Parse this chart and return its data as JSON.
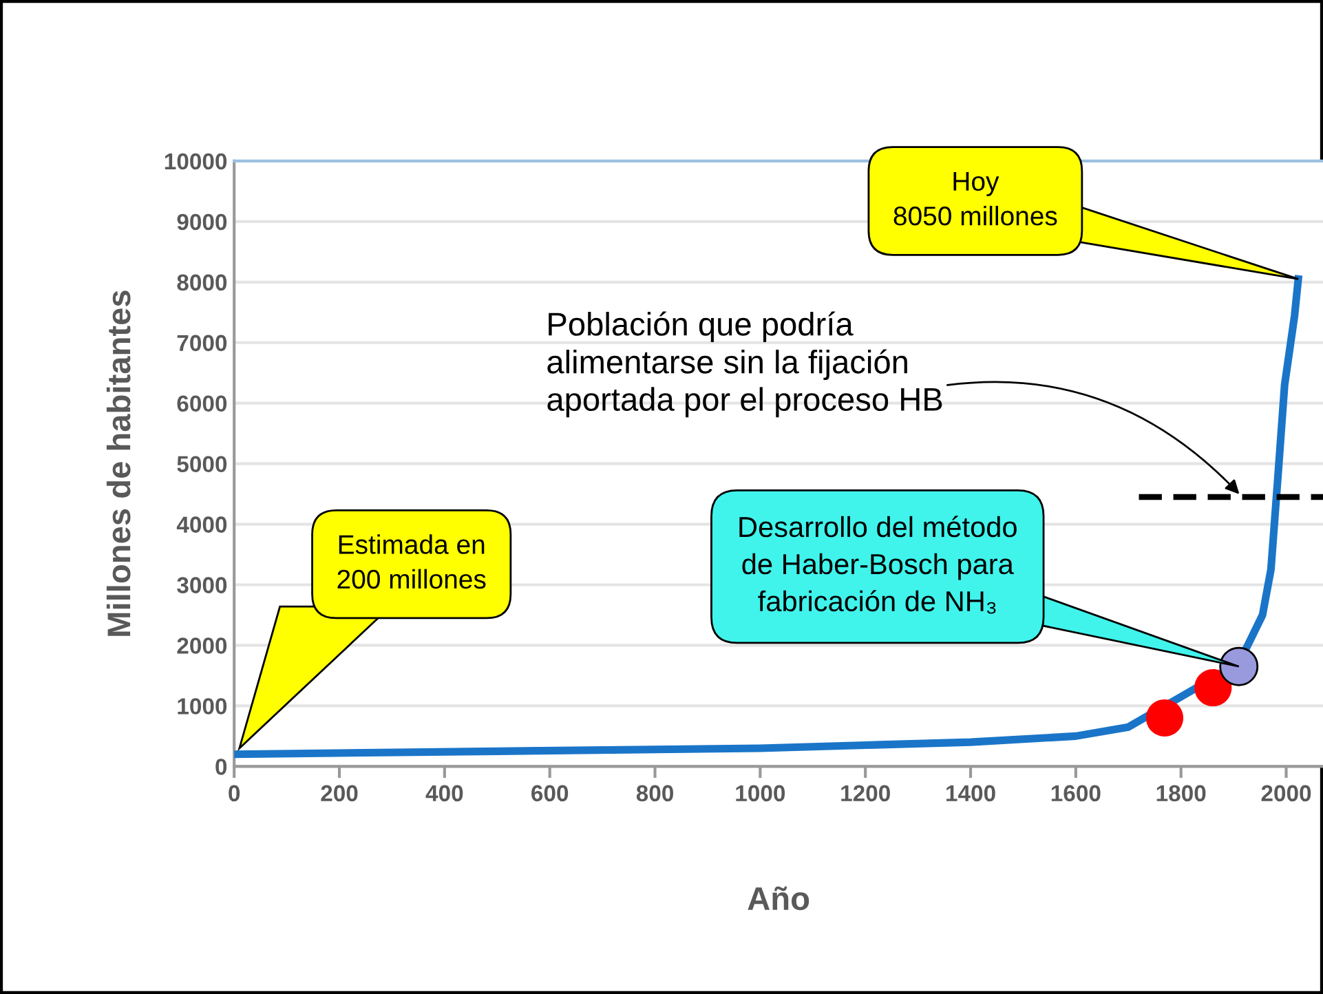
{
  "chart_data": {
    "type": "line",
    "xlabel": "Año",
    "ylabel": "Millones de habitantes",
    "xlim": [
      0,
      2070
    ],
    "ylim": [
      0,
      10000
    ],
    "xticks": [
      0,
      200,
      400,
      600,
      800,
      1000,
      1200,
      1400,
      1600,
      1800,
      2000
    ],
    "yticks": [
      0,
      1000,
      2000,
      3000,
      4000,
      5000,
      6000,
      7000,
      8000,
      9000,
      10000
    ],
    "grid": "y",
    "legend": false,
    "series": [
      {
        "color": "#1a75c8",
        "line_style": "solid",
        "marker": "none",
        "x": [
          0,
          500,
          1000,
          1200,
          1400,
          1600,
          1700,
          1910,
          1955,
          1971,
          1984,
          1997,
          2016,
          2023
        ],
        "values": [
          200,
          250,
          300,
          350,
          400,
          500,
          650,
          1700,
          2500,
          3250,
          4750,
          6300,
          7450,
          8050
        ]
      },
      {
        "color": "#000000",
        "line_style": "dashed",
        "marker": "none",
        "x": [
          1720,
          2070
        ],
        "values": [
          4450,
          4450
        ]
      },
      {
        "type": "scatter",
        "color": "#ff0000",
        "marker": "circle",
        "x": [
          1769,
          1861
        ],
        "values": [
          800,
          1300
        ]
      },
      {
        "type": "scatter",
        "color": "#9999dd",
        "marker": "circle",
        "x": [
          1910
        ],
        "values": [
          1650
        ]
      }
    ],
    "annotations": [
      {
        "text": "Hoy\n8050 millones",
        "x": 2023,
        "y": 8050
      },
      "Estimada en\n200 millones",
      {
        "text": "Desarrollo del método\nde Haber-Bosch para\nfabricación de NH₃",
        "x": 1910,
        "y": 1650
      },
      {
        "text": "Población que podría\nalimentarse sin la fijación\naportada por el proceso HB",
        "x": 1916,
        "y": 4450
      }
    ]
  }
}
